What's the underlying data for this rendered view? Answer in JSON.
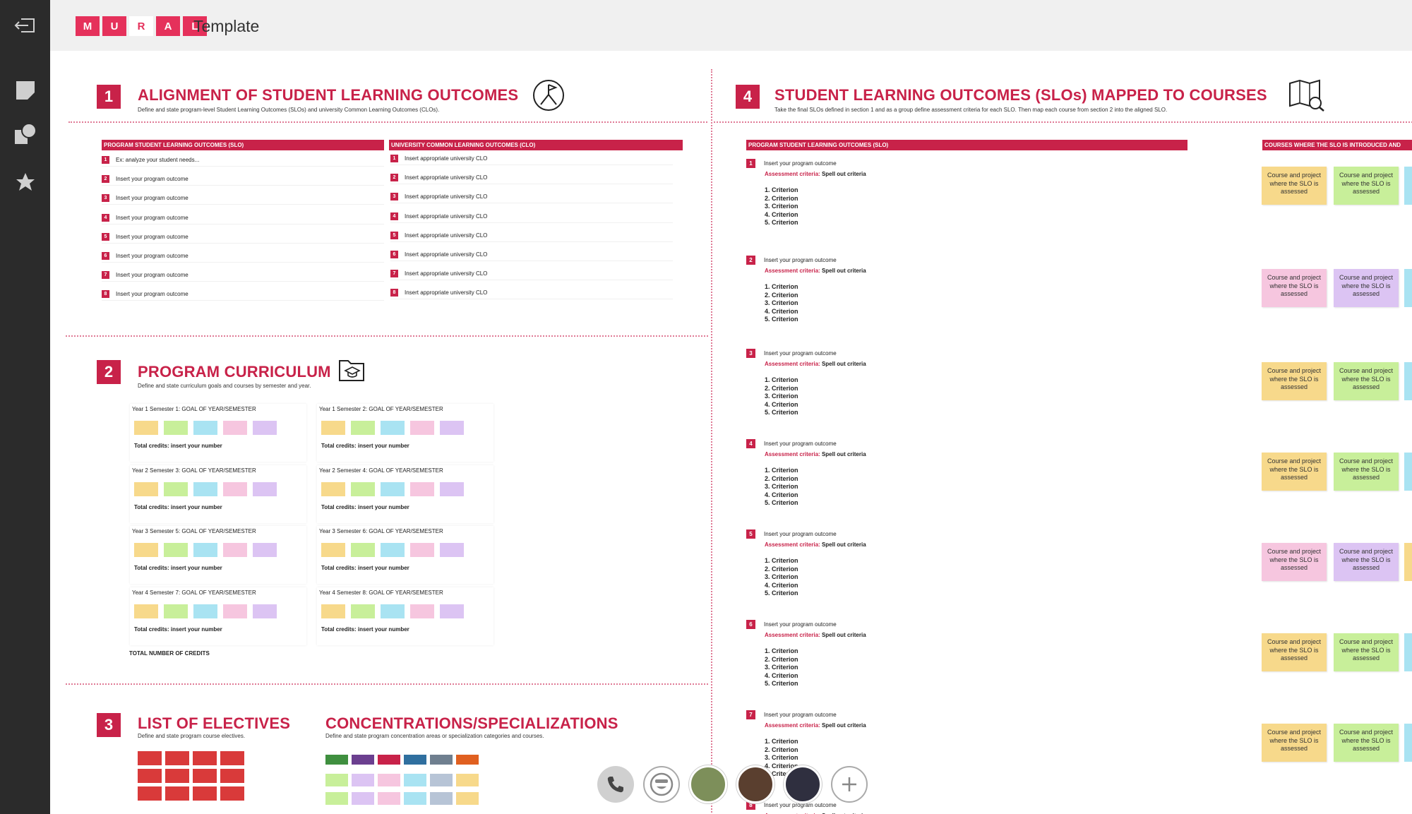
{
  "app": {
    "brand_letters": [
      "M",
      "U",
      "R",
      "A",
      "L"
    ],
    "title": "Template"
  },
  "rail": {
    "icons": [
      "exit-icon",
      "sticky-note-icon",
      "shapes-icon",
      "star-icon"
    ]
  },
  "sec1": {
    "num": "1",
    "title": "ALIGNMENT OF STUDENT LEARNING OUTCOMES",
    "sub": "Define and state program-level Student Learning Outcomes (SLOs) and university Common Learning Outcomes (CLOs).",
    "col1_header": "PROGRAM STUDENT LEARNING OUTCOMES  (SLO)",
    "col2_header": "UNIVERSITY COMMON LEARNING OUTCOMES  (CLO)",
    "slo_rows": [
      {
        "n": "1",
        "t": "Ex: analyze your student needs..."
      },
      {
        "n": "2",
        "t": "Insert your program outcome"
      },
      {
        "n": "3",
        "t": "Insert your program outcome"
      },
      {
        "n": "4",
        "t": "Insert your program outcome"
      },
      {
        "n": "5",
        "t": "Insert your program outcome"
      },
      {
        "n": "6",
        "t": "Insert your program outcome"
      },
      {
        "n": "7",
        "t": "Insert your program outcome"
      },
      {
        "n": "8",
        "t": "Insert your program outcome"
      }
    ],
    "clo_rows": [
      {
        "n": "1",
        "t": "Insert appropriate university CLO"
      },
      {
        "n": "2",
        "t": "Insert appropriate university CLO"
      },
      {
        "n": "3",
        "t": "Insert appropriate university CLO"
      },
      {
        "n": "4",
        "t": "Insert appropriate university CLO"
      },
      {
        "n": "5",
        "t": "Insert appropriate university CLO"
      },
      {
        "n": "6",
        "t": "Insert appropriate university CLO"
      },
      {
        "n": "7",
        "t": "Insert appropriate university CLO"
      },
      {
        "n": "8",
        "t": "Insert appropriate university CLO"
      }
    ]
  },
  "sec2": {
    "num": "2",
    "title": "PROGRAM CURRICULUM",
    "sub": "Define and state curriculum goals and courses by semester and year.",
    "semesters": [
      {
        "label": "Year 1 Semester 1: GOAL OF YEAR/SEMESTER",
        "credits": "Total credits: insert your number"
      },
      {
        "label": "Year 1 Semester 2: GOAL OF YEAR/SEMESTER",
        "credits": "Total credits: insert your number"
      },
      {
        "label": "Year 2 Semester 3: GOAL OF YEAR/SEMESTER",
        "credits": "Total credits: insert your number"
      },
      {
        "label": "Year 2 Semester 4: GOAL OF YEAR/SEMESTER",
        "credits": "Total credits: insert your number"
      },
      {
        "label": "Year 3 Semester 5: GOAL OF YEAR/SEMESTER",
        "credits": "Total credits: insert your number"
      },
      {
        "label": "Year 3 Semester 6: GOAL OF YEAR/SEMESTER",
        "credits": "Total credits: insert your number"
      },
      {
        "label": "Year 4 Semester 7: GOAL OF YEAR/SEMESTER",
        "credits": "Total credits: insert your number"
      },
      {
        "label": "Year 4 Semester 8: GOAL OF YEAR/SEMESTER",
        "credits": "Total credits: insert your number"
      }
    ],
    "total": "TOTAL NUMBER OF CREDITS",
    "sticky_colors": [
      "#f7d98b",
      "#c8ef9a",
      "#a9e3f2",
      "#f6c6df",
      "#dcc4f3"
    ]
  },
  "sec3": {
    "num": "3",
    "title": "LIST OF ELECTIVES",
    "sub": "Define and state program course electives.",
    "title2": "CONCENTRATIONS/SPECIALIZATIONS",
    "sub2": "Define and state program concentration areas or specialization categories and courses.",
    "conc_colors": [
      "#3f8f3f",
      "#6b3f8f",
      "#c82249",
      "#2f6f9f",
      "#6f7f8f",
      "#e06020"
    ],
    "conc_sticky_colors": [
      "#c8ef9a",
      "#dcc4f3",
      "#f6c6df",
      "#a9e3f2",
      "#b7c4d6",
      "#f7d98b"
    ]
  },
  "sec4": {
    "num": "4",
    "title": "STUDENT LEARNING OUTCOMES (SLOs)  MAPPED TO COURSES",
    "sub": "Take the final SLOs defined in section 1 and as a group define assessment criteria for each SLO. Then map each course from section 2 into the aligned SLO.",
    "header_left": "PROGRAM STUDENT LEARNING OUTCOMES  (SLO)",
    "header_right": "COURSES WHERE THE SLO IS INTRODUCED  AND",
    "assess_label": "Assessment criteria:",
    "assess_value": "Spell out criteria",
    "criteria": [
      "1. Criterion",
      "2. Criterion",
      "3. Criterion",
      "4. Criterion",
      "5. Criterion"
    ],
    "rows": [
      {
        "n": "1",
        "t": "Insert your program outcome"
      },
      {
        "n": "2",
        "t": "Insert your program outcome"
      },
      {
        "n": "3",
        "t": "Insert your program outcome"
      },
      {
        "n": "4",
        "t": "Insert your program outcome"
      },
      {
        "n": "5",
        "t": "Insert your program outcome"
      },
      {
        "n": "6",
        "t": "Insert your program outcome"
      },
      {
        "n": "7",
        "t": "Insert your program outcome"
      },
      {
        "n": "8",
        "t": "Insert your program outcome"
      }
    ],
    "sticky_text": "Course and project where the SLO is assessed",
    "sticky_pairs": [
      [
        "#f7d98b",
        "#c8ef9a"
      ],
      [
        "#f6c6df",
        "#dcc4f3"
      ],
      [
        "#f7d98b",
        "#c8ef9a"
      ],
      [
        "#f7d98b",
        "#c8ef9a"
      ],
      [
        "#f6c6df",
        "#dcc4f3"
      ],
      [
        "#f7d98b",
        "#c8ef9a"
      ],
      [
        "#f7d98b",
        "#c8ef9a"
      ]
    ],
    "edge_colors": [
      "#a9e3f2",
      "#a9e3f2",
      "#a9e3f2",
      "#a9e3f2",
      "#f7d98b",
      "#a9e3f2",
      "#a9e3f2"
    ]
  },
  "callbar": {
    "buttons": [
      "phone-icon",
      "emoji-icon"
    ],
    "avatars": [
      {
        "color": "#7d8f5a"
      },
      {
        "color": "#5a3f2f"
      },
      {
        "color": "#2f2f3f"
      }
    ],
    "add": "plus-icon"
  }
}
